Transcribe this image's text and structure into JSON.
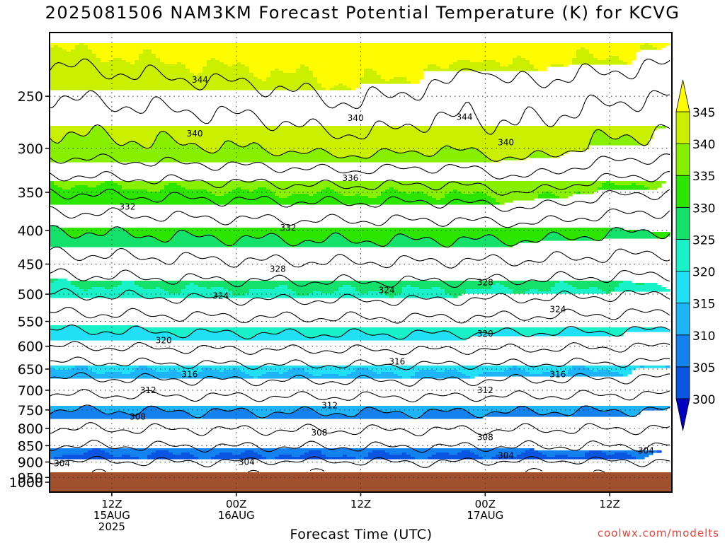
{
  "chart_data": {
    "type": "contour",
    "title": "2025081506 NAM3KM Forecast Potential Temperature (K) for KCVG",
    "xlabel": "Forecast Time (UTC)",
    "ylabel": "",
    "y_scale": "log",
    "y_direction": "pressure decreasing upward",
    "ylim": [
      1000,
      200
    ],
    "y_ticks": [
      250,
      300,
      350,
      400,
      450,
      500,
      550,
      600,
      650,
      700,
      750,
      800,
      850,
      900,
      950,
      1000
    ],
    "x_range_hours": [
      0,
      60
    ],
    "x_ticks": [
      {
        "hour": 6,
        "lines": [
          "12Z",
          "15AUG",
          "2025"
        ]
      },
      {
        "hour": 18,
        "lines": [
          "00Z",
          "16AUG"
        ]
      },
      {
        "hour": 30,
        "lines": [
          "12Z"
        ]
      },
      {
        "hour": 42,
        "lines": [
          "00Z",
          "17AUG"
        ]
      },
      {
        "hour": 54,
        "lines": [
          "12Z"
        ]
      }
    ],
    "grid": "dotted",
    "colorbar": {
      "levels": [
        300,
        305,
        310,
        315,
        320,
        325,
        330,
        335,
        340,
        345
      ],
      "colors": [
        "#0a28c8",
        "#0a55e0",
        "#1482ee",
        "#1eb4f8",
        "#21e0f5",
        "#19f2c8",
        "#14e16a",
        "#2ce600",
        "#86f000",
        "#caf000",
        "#fffb00"
      ],
      "under_color": "#0000c0",
      "over_color": "#fffb00"
    },
    "theta_profile_hour0": [
      {
        "p": 1000,
        "theta": 301
      },
      {
        "p": 925,
        "theta": 303
      },
      {
        "p": 850,
        "theta": 306
      },
      {
        "p": 800,
        "theta": 308
      },
      {
        "p": 750,
        "theta": 310
      },
      {
        "p": 700,
        "theta": 312.5
      },
      {
        "p": 650,
        "theta": 315
      },
      {
        "p": 600,
        "theta": 318
      },
      {
        "p": 550,
        "theta": 321
      },
      {
        "p": 500,
        "theta": 324
      },
      {
        "p": 450,
        "theta": 327
      },
      {
        "p": 400,
        "theta": 330
      },
      {
        "p": 350,
        "theta": 334
      },
      {
        "p": 300,
        "theta": 339
      },
      {
        "p": 250,
        "theta": 342
      },
      {
        "p": 200,
        "theta": 346
      }
    ],
    "contour_levels": [
      300,
      302,
      304,
      306,
      308,
      310,
      312,
      314,
      316,
      318,
      320,
      322,
      324,
      326,
      328,
      330,
      332,
      334,
      336,
      338,
      340,
      342,
      344
    ],
    "contour_labels": [
      {
        "hour": 1.2,
        "p": 905,
        "text": "304"
      },
      {
        "hour": 19,
        "p": 900,
        "text": "304"
      },
      {
        "hour": 44,
        "p": 880,
        "text": "304"
      },
      {
        "hour": 57.5,
        "p": 865,
        "text": "304"
      },
      {
        "hour": 8.5,
        "p": 768,
        "text": "308"
      },
      {
        "hour": 26,
        "p": 812,
        "text": "308"
      },
      {
        "hour": 42,
        "p": 825,
        "text": "308"
      },
      {
        "hour": 9.5,
        "p": 700,
        "text": "312"
      },
      {
        "hour": 27,
        "p": 738,
        "text": "312"
      },
      {
        "hour": 42,
        "p": 700,
        "text": "312"
      },
      {
        "hour": 13.5,
        "p": 662,
        "text": "316"
      },
      {
        "hour": 33.5,
        "p": 633,
        "text": "316"
      },
      {
        "hour": 49,
        "p": 662,
        "text": "316"
      },
      {
        "hour": 11,
        "p": 588,
        "text": "320"
      },
      {
        "hour": 42,
        "p": 574,
        "text": "320"
      },
      {
        "hour": 16.5,
        "p": 503,
        "text": "324"
      },
      {
        "hour": 32.5,
        "p": 493,
        "text": "324"
      },
      {
        "hour": 49,
        "p": 527,
        "text": "324"
      },
      {
        "hour": 22,
        "p": 458,
        "text": "328"
      },
      {
        "hour": 42,
        "p": 480,
        "text": "328"
      },
      {
        "hour": 7.5,
        "p": 368,
        "text": "332"
      },
      {
        "hour": 23,
        "p": 396,
        "text": "332"
      },
      {
        "hour": 29,
        "p": 333,
        "text": "336"
      },
      {
        "hour": 14,
        "p": 285,
        "text": "340"
      },
      {
        "hour": 29.5,
        "p": 270,
        "text": "340"
      },
      {
        "hour": 44,
        "p": 294,
        "text": "340"
      },
      {
        "hour": 14.5,
        "p": 236,
        "text": "344"
      },
      {
        "hour": 40,
        "p": 269,
        "text": "344"
      }
    ],
    "units": "K"
  },
  "credit": "coolwx.com/modelts"
}
